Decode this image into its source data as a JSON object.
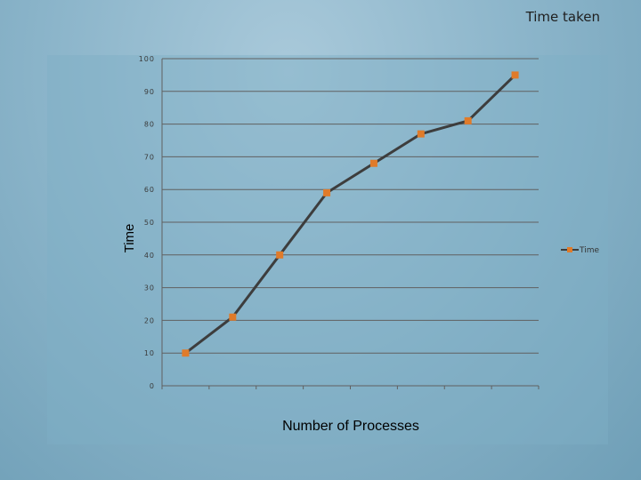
{
  "slide": {
    "title": "Time taken"
  },
  "colors": {
    "plot_bg": "#7fb0c6",
    "line": "#3d3d3d",
    "marker": "#e07b2a",
    "grid": "#606060"
  },
  "chart_data": {
    "type": "line",
    "title": "",
    "xlabel": "Number of Processes",
    "ylabel": "Time",
    "x": [
      "",
      "",
      "",
      "",
      "",
      "",
      "",
      ""
    ],
    "series": [
      {
        "name": "Time",
        "values": [
          10,
          21,
          40,
          59,
          68,
          77,
          81,
          95
        ]
      }
    ],
    "ylim": [
      0,
      100
    ],
    "yticks": [
      "0",
      "10",
      "20",
      "30",
      "40",
      "50",
      "60",
      "70",
      "80",
      "90",
      "100"
    ],
    "grid": true,
    "legend": "right"
  }
}
